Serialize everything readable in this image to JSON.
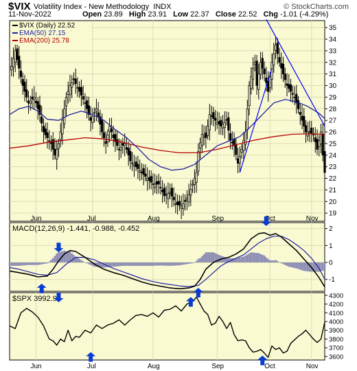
{
  "header": {
    "symbol": "$VIX",
    "name": "Volatility Index - New Methodology",
    "exchange": "INDX",
    "credit": "© StockCharts.com",
    "date": "11-Nov-2022",
    "open_label": "Open",
    "open": "23.89",
    "high_label": "High",
    "high": "23.91",
    "low_label": "Low",
    "low": "22.37",
    "close_label": "Close",
    "close": "22.52",
    "chg_label": "Chg",
    "chg": "-1.01 (-4.29%)"
  },
  "colors": {
    "panel_bg": "#fafad2",
    "grid": "#dcdcb4",
    "candle": "#000000",
    "ema50": "#1f1fa0",
    "ema200": "#b40000",
    "trendline": "#0000ff",
    "histogram": "#8c8cb4",
    "arrow": "#0a3cd2"
  },
  "chart_data": [
    {
      "type": "candlestick",
      "panel": "price",
      "legend": [
        {
          "label": "$VIX (Daily) 22.52",
          "color": "#000000"
        },
        {
          "label": "EMA(50) 27.15",
          "color": "#1f1fa0"
        },
        {
          "label": "EMA(200) 25.78",
          "color": "#b40000"
        }
      ],
      "x_ticks": [
        "Jun",
        "Jul",
        "Aug",
        "Sep",
        "Oct",
        "Nov"
      ],
      "y_ticks": [
        19,
        20,
        21,
        22,
        23,
        24,
        25,
        26,
        27,
        28,
        29,
        30,
        31,
        32,
        33,
        34,
        35
      ],
      "ylim": [
        18.3,
        35.6
      ],
      "close_path": [
        [
          0,
          31
        ],
        [
          3,
          33
        ],
        [
          7,
          30
        ],
        [
          10,
          28.5
        ],
        [
          13,
          29
        ],
        [
          16,
          27.5
        ],
        [
          18,
          26
        ],
        [
          20,
          25.5
        ],
        [
          22,
          25
        ],
        [
          24,
          24
        ],
        [
          26,
          25
        ],
        [
          28,
          27
        ],
        [
          30,
          29
        ],
        [
          32,
          30
        ],
        [
          34,
          30.5
        ],
        [
          37,
          29.5
        ],
        [
          40,
          28.5
        ],
        [
          43,
          27
        ],
        [
          46,
          28
        ],
        [
          49,
          26
        ],
        [
          51,
          25
        ],
        [
          53,
          26.5
        ],
        [
          55,
          25.5
        ],
        [
          58,
          24.5
        ],
        [
          61,
          25
        ],
        [
          64,
          23.5
        ],
        [
          67,
          23
        ],
        [
          70,
          22.5
        ],
        [
          73,
          22
        ],
        [
          76,
          21.5
        ],
        [
          79,
          21.5
        ],
        [
          82,
          20.5
        ],
        [
          85,
          20.8
        ],
        [
          88,
          19.8
        ],
        [
          91,
          19.6
        ],
        [
          93,
          20
        ],
        [
          95,
          20.6
        ],
        [
          97,
          21.5
        ],
        [
          99,
          22.5
        ],
        [
          100,
          24.3
        ],
        [
          102,
          25.8
        ],
        [
          104,
          25.5
        ],
        [
          106,
          27.5
        ],
        [
          109,
          27
        ],
        [
          112,
          26.5
        ],
        [
          115,
          27
        ],
        [
          117,
          25.3
        ],
        [
          119,
          24.8
        ],
        [
          121,
          23.3
        ],
        [
          123,
          24.5
        ],
        [
          125,
          26
        ],
        [
          127,
          30
        ],
        [
          129,
          31.5
        ],
        [
          130,
          32
        ],
        [
          131,
          30
        ],
        [
          133,
          32
        ],
        [
          135,
          31
        ],
        [
          137,
          29.5
        ],
        [
          139,
          32
        ],
        [
          141,
          33.5
        ],
        [
          143,
          32
        ],
        [
          145,
          31
        ],
        [
          147,
          30
        ],
        [
          149,
          29.5
        ],
        [
          151,
          29
        ],
        [
          153,
          28
        ],
        [
          155,
          27
        ],
        [
          157,
          26
        ],
        [
          159,
          26
        ],
        [
          161,
          25.8
        ],
        [
          163,
          24.5
        ],
        [
          165,
          26
        ],
        [
          166,
          24
        ],
        [
          167,
          22.5
        ]
      ],
      "ema50_path": [
        [
          0,
          27.5
        ],
        [
          5,
          28
        ],
        [
          10,
          28.2
        ],
        [
          15,
          27.8
        ],
        [
          20,
          27.1
        ],
        [
          26,
          27
        ],
        [
          32,
          27.5
        ],
        [
          38,
          27.8
        ],
        [
          44,
          27.5
        ],
        [
          50,
          27
        ],
        [
          56,
          26.2
        ],
        [
          62,
          25.5
        ],
        [
          68,
          24.6
        ],
        [
          74,
          23.6
        ],
        [
          80,
          23
        ],
        [
          86,
          22.7
        ],
        [
          92,
          22.8
        ],
        [
          98,
          23.2
        ],
        [
          104,
          24
        ],
        [
          110,
          24.8
        ],
        [
          116,
          25.2
        ],
        [
          122,
          25.6
        ],
        [
          128,
          26.5
        ],
        [
          134,
          27.5
        ],
        [
          140,
          28.5
        ],
        [
          146,
          28.8
        ],
        [
          152,
          28.6
        ],
        [
          158,
          28.2
        ],
        [
          164,
          27.6
        ],
        [
          167,
          27.15
        ]
      ],
      "ema200_path": [
        [
          0,
          24.6
        ],
        [
          10,
          24.8
        ],
        [
          20,
          25.1
        ],
        [
          30,
          25.3
        ],
        [
          40,
          25.5
        ],
        [
          50,
          25.4
        ],
        [
          60,
          25.1
        ],
        [
          70,
          24.7
        ],
        [
          80,
          24.4
        ],
        [
          90,
          24.2
        ],
        [
          100,
          24.2
        ],
        [
          110,
          24.5
        ],
        [
          120,
          24.9
        ],
        [
          130,
          25.3
        ],
        [
          140,
          25.6
        ],
        [
          150,
          25.8
        ],
        [
          160,
          25.85
        ],
        [
          167,
          25.78
        ]
      ],
      "trendlines": [
        {
          "from": [
            122,
            22.5
          ],
          "to": [
            139,
            31.5
          ]
        },
        {
          "from": [
            136,
            35.7
          ],
          "to": [
            167,
            26.5
          ]
        }
      ]
    },
    {
      "type": "line",
      "panel": "macd",
      "legend_label": "MACD(12,26,9) -1.441, -0.988, -0.452",
      "y_ticks": [
        -1,
        0,
        1,
        2
      ],
      "ylim": [
        -1.7,
        2.35
      ],
      "macd_path": [
        [
          0,
          -0.5
        ],
        [
          5,
          -0.6
        ],
        [
          10,
          -0.7
        ],
        [
          15,
          -0.85
        ],
        [
          20,
          -0.8
        ],
        [
          23,
          -0.4
        ],
        [
          26,
          0.1
        ],
        [
          29,
          0.5
        ],
        [
          32,
          0.7
        ],
        [
          35,
          0.65
        ],
        [
          40,
          0.3
        ],
        [
          45,
          -0.1
        ],
        [
          50,
          -0.4
        ],
        [
          55,
          -0.6
        ],
        [
          60,
          -0.75
        ],
        [
          65,
          -0.95
        ],
        [
          70,
          -1.15
        ],
        [
          75,
          -1.3
        ],
        [
          80,
          -1.4
        ],
        [
          85,
          -1.5
        ],
        [
          90,
          -1.55
        ],
        [
          95,
          -1.5
        ],
        [
          98,
          -1.4
        ],
        [
          101,
          -1.0
        ],
        [
          104,
          -0.4
        ],
        [
          108,
          0
        ],
        [
          112,
          0.2
        ],
        [
          116,
          0.3
        ],
        [
          120,
          0.5
        ],
        [
          124,
          0.8
        ],
        [
          128,
          1.4
        ],
        [
          132,
          1.7
        ],
        [
          135,
          1.75
        ],
        [
          138,
          1.6
        ],
        [
          141,
          1.7
        ],
        [
          144,
          1.5
        ],
        [
          148,
          1.1
        ],
        [
          152,
          0.7
        ],
        [
          156,
          0.2
        ],
        [
          160,
          -0.3
        ],
        [
          164,
          -0.9
        ],
        [
          167,
          -1.44
        ]
      ],
      "signal_path": [
        [
          0,
          -0.3
        ],
        [
          5,
          -0.4
        ],
        [
          10,
          -0.55
        ],
        [
          15,
          -0.7
        ],
        [
          20,
          -0.75
        ],
        [
          25,
          -0.6
        ],
        [
          30,
          -0.1
        ],
        [
          35,
          0.3
        ],
        [
          40,
          0.3
        ],
        [
          45,
          0.15
        ],
        [
          50,
          -0.1
        ],
        [
          55,
          -0.35
        ],
        [
          60,
          -0.55
        ],
        [
          65,
          -0.75
        ],
        [
          70,
          -0.95
        ],
        [
          75,
          -1.1
        ],
        [
          80,
          -1.22
        ],
        [
          85,
          -1.3
        ],
        [
          90,
          -1.38
        ],
        [
          95,
          -1.42
        ],
        [
          100,
          -1.35
        ],
        [
          104,
          -1.0
        ],
        [
          108,
          -0.6
        ],
        [
          112,
          -0.2
        ],
        [
          116,
          0.05
        ],
        [
          120,
          0.25
        ],
        [
          124,
          0.45
        ],
        [
          128,
          0.8
        ],
        [
          132,
          1.15
        ],
        [
          136,
          1.4
        ],
        [
          140,
          1.55
        ],
        [
          144,
          1.55
        ],
        [
          148,
          1.35
        ],
        [
          152,
          1.05
        ],
        [
          156,
          0.7
        ],
        [
          160,
          0.25
        ],
        [
          164,
          -0.35
        ],
        [
          167,
          -0.99
        ]
      ],
      "blue_arrows": [
        {
          "x": 26,
          "y": 0.6,
          "dir": "down"
        },
        {
          "x": 17,
          "y": -1.25,
          "dir": "up"
        },
        {
          "x": 100,
          "y": -1.5,
          "dir": "up"
        },
        {
          "x": 136,
          "y": 2.15,
          "dir": "down"
        }
      ]
    },
    {
      "type": "line",
      "panel": "spx",
      "legend_label": "$SPX 3992.93",
      "y_ticks": [
        3600,
        3700,
        3800,
        3900,
        4000,
        4100,
        4200,
        4300
      ],
      "ylim": [
        3560,
        4330
      ],
      "close_path": [
        [
          0,
          3950
        ],
        [
          3,
          3920
        ],
        [
          6,
          4100
        ],
        [
          9,
          4150
        ],
        [
          12,
          4110
        ],
        [
          15,
          4050
        ],
        [
          18,
          3950
        ],
        [
          21,
          3800
        ],
        [
          23,
          3780
        ],
        [
          25,
          3730
        ],
        [
          27,
          3800
        ],
        [
          29,
          3770
        ],
        [
          31,
          3900
        ],
        [
          33,
          3780
        ],
        [
          35,
          3830
        ],
        [
          37,
          3820
        ],
        [
          40,
          3900
        ],
        [
          43,
          3870
        ],
        [
          46,
          3960
        ],
        [
          49,
          3920
        ],
        [
          52,
          3960
        ],
        [
          55,
          3980
        ],
        [
          58,
          4020
        ],
        [
          61,
          3960
        ],
        [
          64,
          4020
        ],
        [
          67,
          4070
        ],
        [
          70,
          4080
        ],
        [
          73,
          4060
        ],
        [
          76,
          4100
        ],
        [
          79,
          4050
        ],
        [
          82,
          4130
        ],
        [
          85,
          4140
        ],
        [
          88,
          4180
        ],
        [
          91,
          4120
        ],
        [
          94,
          4200
        ],
        [
          97,
          4230
        ],
        [
          99,
          4280
        ],
        [
          101,
          4200
        ],
        [
          103,
          4120
        ],
        [
          105,
          4080
        ],
        [
          107,
          3960
        ],
        [
          109,
          3980
        ],
        [
          111,
          4060
        ],
        [
          113,
          4000
        ],
        [
          115,
          3920
        ],
        [
          117,
          3990
        ],
        [
          119,
          3850
        ],
        [
          121,
          3780
        ],
        [
          123,
          3790
        ],
        [
          125,
          3780
        ],
        [
          127,
          3700
        ],
        [
          129,
          3650
        ],
        [
          131,
          3660
        ],
        [
          133,
          3680
        ],
        [
          135,
          3640
        ],
        [
          137,
          3590
        ],
        [
          139,
          3720
        ],
        [
          141,
          3680
        ],
        [
          143,
          3700
        ],
        [
          145,
          3640
        ],
        [
          147,
          3660
        ],
        [
          149,
          3750
        ],
        [
          151,
          3790
        ],
        [
          153,
          3830
        ],
        [
          155,
          3860
        ],
        [
          157,
          3900
        ],
        [
          159,
          3850
        ],
        [
          161,
          3800
        ],
        [
          163,
          3760
        ],
        [
          165,
          3800
        ],
        [
          167,
          3993
        ]
      ],
      "blue_arrows": [
        {
          "x": 26,
          "y": 4220,
          "dir": "down"
        },
        {
          "x": 43,
          "y": 3650,
          "dir": "up"
        },
        {
          "x": 96,
          "y": 4280,
          "dir": "up"
        },
        {
          "x": 134,
          "y": 3610,
          "dir": "up"
        }
      ]
    }
  ]
}
